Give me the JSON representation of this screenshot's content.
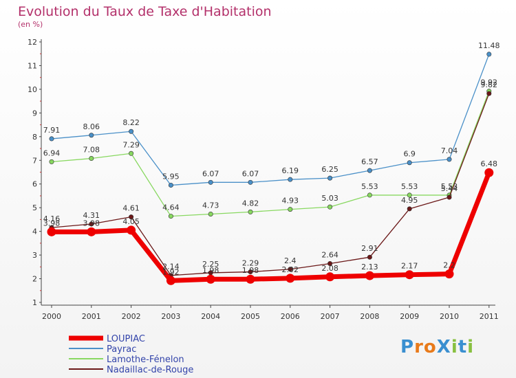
{
  "title": "Evolution du Taux de Taxe d'Habitation",
  "subtitle": "(en %)",
  "logo_text": "ProXiti",
  "chart_data": {
    "type": "line",
    "title": "Evolution du Taux de Taxe d'Habitation",
    "ylabel": "(en %)",
    "xlabel": "",
    "ylim": [
      1,
      12
    ],
    "yticks": [
      1,
      2,
      3,
      4,
      5,
      6,
      7,
      8,
      9,
      10,
      11,
      12
    ],
    "categories": [
      "2000",
      "2001",
      "2002",
      "2003",
      "2004",
      "2005",
      "2006",
      "2007",
      "2008",
      "2009",
      "2010",
      "2011"
    ],
    "grid": false,
    "legend_position": "bottom-left",
    "series": [
      {
        "name": "LOUPIAC",
        "color": "#ee0000",
        "values": [
          3.98,
          3.98,
          4.05,
          1.92,
          1.98,
          1.98,
          2.02,
          2.08,
          2.13,
          2.17,
          2.2,
          6.48
        ]
      },
      {
        "name": "Payrac",
        "color": "#4a90c8",
        "values": [
          7.91,
          8.06,
          8.22,
          5.95,
          6.07,
          6.07,
          6.19,
          6.25,
          6.57,
          6.9,
          7.04,
          11.48
        ]
      },
      {
        "name": "Lamothe-Fénelon",
        "color": "#88d860",
        "values": [
          6.94,
          7.08,
          7.29,
          4.64,
          4.73,
          4.82,
          4.93,
          5.03,
          5.53,
          5.53,
          5.53,
          9.92
        ]
      },
      {
        "name": "Nadaillac-de-Rouge",
        "color": "#6b1818",
        "values": [
          4.16,
          4.31,
          4.61,
          2.14,
          2.25,
          2.29,
          2.4,
          2.64,
          2.91,
          4.95,
          5.44,
          9.82
        ]
      }
    ]
  }
}
